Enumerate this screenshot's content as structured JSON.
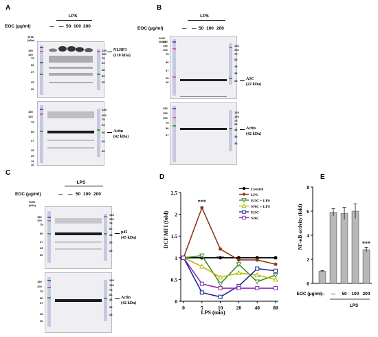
{
  "panels": {
    "A": {
      "letter": "A",
      "group": "LPS",
      "treatment_label": "EOC (μg/ml)",
      "lanes": [
        "—",
        "—",
        "50",
        "100",
        "200"
      ],
      "mw_header": "M.W.\n(kDa)",
      "left_markers": [
        "150",
        "100",
        "75",
        "50",
        "37",
        "25",
        "20",
        "15",
        "10"
      ],
      "right_markers": [
        "135",
        "100",
        "75",
        "63",
        "48",
        "35",
        "25"
      ],
      "top_band": "NLRP3\n(110 kDa)",
      "bottom_band": "Actin\n(42 kDa)"
    },
    "B": {
      "letter": "B",
      "group": "LPS",
      "treatment_label": "EOC (μg/ml)",
      "lanes": [
        "—",
        "—",
        "50",
        "100",
        "200"
      ],
      "mw_header": "M.W.\n(kDa)",
      "left_markers": [
        "250",
        "150",
        "100",
        "75",
        "50",
        "37",
        "25",
        "20"
      ],
      "right_markers": [
        "135",
        "100",
        "75",
        "63",
        "48",
        "35",
        "25"
      ],
      "top_band": "ASC\n(22 kDa)",
      "bottom_band": "Actin\n(42 kDa)"
    },
    "C": {
      "letter": "C",
      "group": "LPS",
      "treatment_label": "EOC (μg/ml)",
      "lanes": [
        "—",
        "—",
        "50",
        "100",
        "200"
      ],
      "mw_header": "M.W.\n(kDa)",
      "left_markers": [
        "150",
        "100",
        "75",
        "50",
        "37",
        "25",
        "20"
      ],
      "right_markers": [
        "135",
        "100",
        "75",
        "63",
        "48",
        "35",
        "25"
      ],
      "top_band": "p45\n(45 kDa)",
      "bottom_band": "Actin\n(42 kDa)"
    },
    "D": {
      "letter": "D"
    },
    "E": {
      "letter": "E",
      "group": "LPS",
      "treatment_label": "EOC (μg/ml)"
    }
  },
  "colors": {
    "control": "#000000",
    "lps": "#8b3a1a",
    "eoc_lps": "#3a8a2a",
    "nac_lps": "#b8b800",
    "eoc": "#1a2a9a",
    "nac": "#8a2ab8",
    "blot_bg": "#eeeef3"
  },
  "chart_data": [
    {
      "type": "line",
      "panel": "D",
      "xlabel": "LPS (min)",
      "ylabel": "DCF MFI (fold)",
      "x": [
        0,
        5,
        10,
        20,
        40,
        80
      ],
      "xlim": [
        0,
        80
      ],
      "ylim": [
        0,
        2.5
      ],
      "yticks": [
        0,
        0.5,
        1.0,
        1.5,
        2.0,
        2.5
      ],
      "legend_position": "top-right",
      "series": [
        {
          "name": "Control",
          "values": [
            1.0,
            1.0,
            1.0,
            1.0,
            1.0,
            1.0
          ]
        },
        {
          "name": "LPS",
          "values": [
            1.0,
            2.15,
            1.2,
            0.95,
            0.95,
            0.85
          ]
        },
        {
          "name": "EOC + LPS",
          "values": [
            1.0,
            1.05,
            0.4,
            0.85,
            0.45,
            0.6
          ]
        },
        {
          "name": "NAC + LPS",
          "values": [
            1.0,
            0.8,
            0.55,
            0.65,
            0.6,
            0.5
          ]
        },
        {
          "name": "EOC",
          "values": [
            1.0,
            0.2,
            0.1,
            0.35,
            0.75,
            0.7
          ]
        },
        {
          "name": "NAC",
          "values": [
            1.0,
            0.4,
            0.3,
            0.3,
            0.3,
            0.3
          ]
        }
      ],
      "annotations": [
        {
          "x": 5,
          "text": "***"
        },
        {
          "x": 10,
          "text": "***"
        }
      ]
    },
    {
      "type": "bar",
      "panel": "E",
      "ylabel": "NF-κB activity (fold)",
      "categories": [
        "—",
        "—",
        "50",
        "100",
        "200"
      ],
      "values": [
        1.0,
        5.9,
        5.8,
        6.0,
        2.8
      ],
      "errors": [
        0.05,
        0.3,
        0.5,
        0.6,
        0.2
      ],
      "ylim": [
        0,
        8
      ],
      "yticks": [
        0,
        2,
        4,
        6,
        8
      ],
      "group_label": "LPS",
      "annotations": [
        {
          "category_index": 4,
          "text": "***"
        }
      ]
    }
  ]
}
